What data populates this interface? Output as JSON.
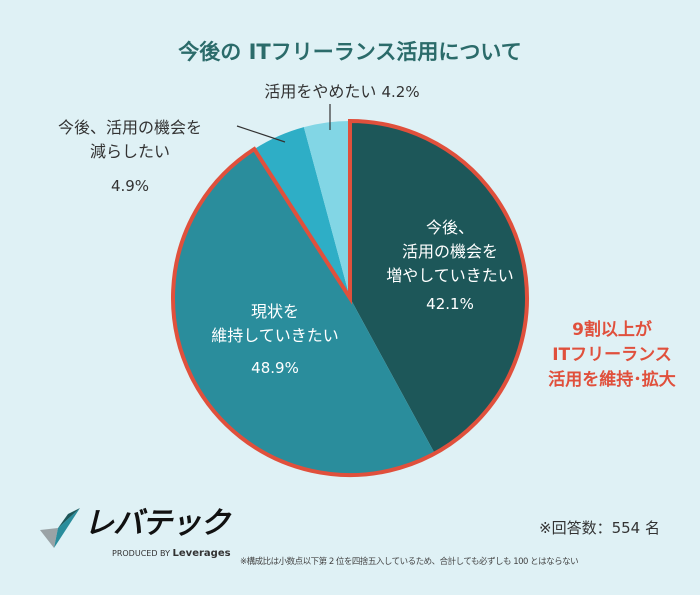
{
  "chart_data": {
    "type": "pie",
    "title": "今後の ITフリーランス活用について",
    "slices": [
      {
        "label": "今後、活用の機会を増やしていきたい",
        "value": 42.1,
        "value_label": "42.1%",
        "color": "#1d5759"
      },
      {
        "label": "現状を維持していきたい",
        "value": 48.9,
        "value_label": "48.9%",
        "color": "#2a8d9c"
      },
      {
        "label": "今後、活用の機会を減らしたい",
        "value": 4.9,
        "value_label": "4.9%",
        "color": "#2eaec6"
      },
      {
        "label": "活用をやめたい",
        "value": 4.2,
        "value_label": "4.2%",
        "color": "#82d6e5"
      }
    ],
    "start_angle": "12 o'clock",
    "direction": "clockwise",
    "highlight": {
      "slices": [
        0,
        1
      ],
      "outline_color": "#e0503c",
      "text": [
        "9割以上が",
        "ITフリーランス",
        "活用を維持･拡大"
      ]
    }
  },
  "labels": {
    "increase": [
      "今後、",
      "活用の機会を",
      "増やしていきたい"
    ],
    "maintain": [
      "現状を",
      "維持していきたい"
    ],
    "reduce": [
      "今後、活用の機会を",
      "減らしたい"
    ],
    "stop": "活用をやめたい"
  },
  "footer": {
    "respondents": "※回答数：554 名",
    "note": "※構成比は小数点以下第 2 位を四捨五入しているため、合計しても必ずしも 100 とはならない",
    "logo_text": "レバテック",
    "logo_sub_prefix": "PRODUCED BY",
    "logo_sub_brand": "Leverages"
  },
  "colors": {
    "background": "#dff1f5",
    "title": "#2b6b6a",
    "accent": "#e0503c"
  }
}
